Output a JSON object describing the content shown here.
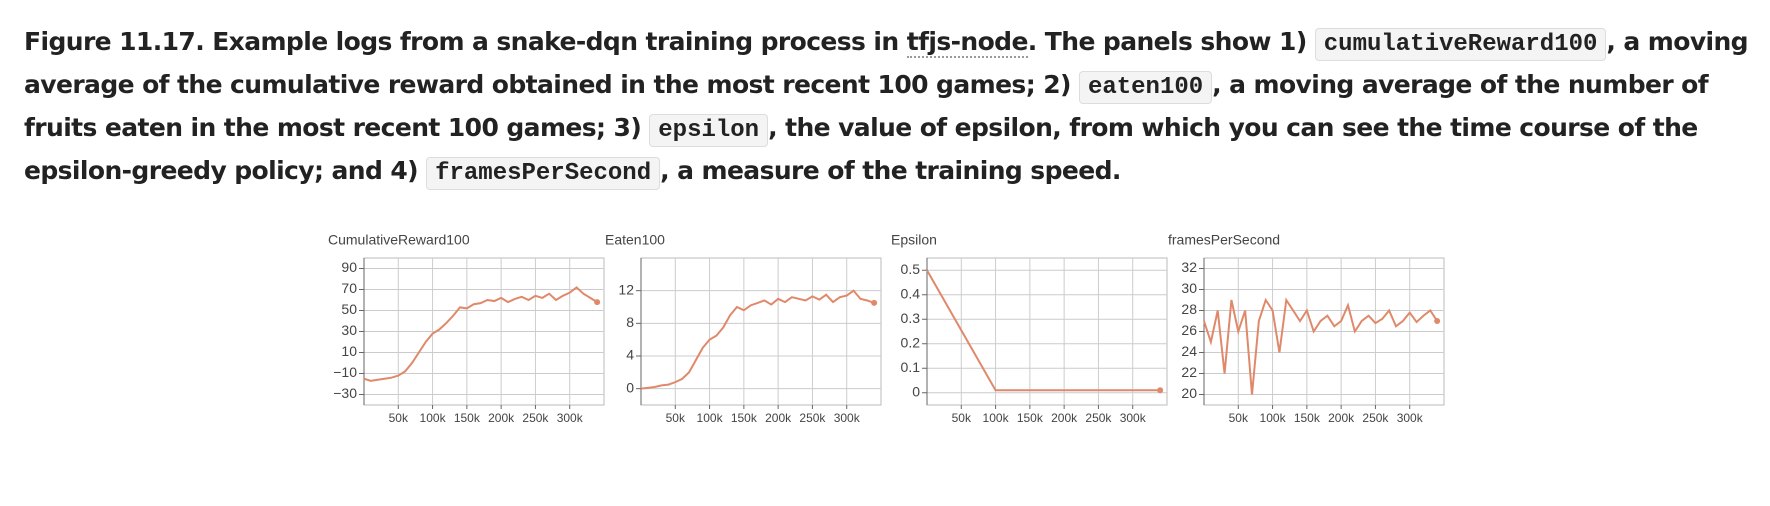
{
  "caption": {
    "segments": [
      {
        "text": "Figure 11.17. Example logs from a snake-dqn training process in ",
        "style": "text"
      },
      {
        "text": "tfjs-node",
        "style": "link"
      },
      {
        "text": ". The panels show 1) ",
        "style": "text"
      },
      {
        "text": "cumulativeReward100",
        "style": "code"
      },
      {
        "text": ", a moving average of the cumulative reward obtained in the most recent 100 games; 2) ",
        "style": "text"
      },
      {
        "text": "eaten100",
        "style": "code"
      },
      {
        "text": ", a moving average of the number of fruits eaten in the most recent 100 games; 3) ",
        "style": "text"
      },
      {
        "text": "epsilon",
        "style": "code"
      },
      {
        "text": ", the value of epsilon, from which you can see the time course of the epsilon-greedy policy; and 4) ",
        "style": "text"
      },
      {
        "text": "framesPerSecond",
        "style": "code"
      },
      {
        "text": ", a measure of the training speed.",
        "style": "text"
      }
    ]
  },
  "chart_data": [
    {
      "type": "line",
      "title": "CumulativeReward100",
      "color": "#e0896a",
      "grid": true,
      "x": [
        0,
        10000,
        20000,
        30000,
        40000,
        50000,
        60000,
        70000,
        80000,
        90000,
        100000,
        110000,
        120000,
        130000,
        140000,
        150000,
        160000,
        170000,
        180000,
        190000,
        200000,
        210000,
        220000,
        230000,
        240000,
        250000,
        260000,
        270000,
        280000,
        290000,
        300000,
        310000,
        320000,
        330000,
        340000
      ],
      "values": [
        -15,
        -17,
        -16,
        -15,
        -14,
        -12,
        -8,
        0,
        10,
        20,
        28,
        32,
        38,
        45,
        53,
        52,
        56,
        57,
        60,
        59,
        62,
        58,
        61,
        63,
        60,
        64,
        62,
        66,
        60,
        64,
        67,
        72,
        66,
        62,
        58
      ],
      "xlim": [
        0,
        350000
      ],
      "ylim": [
        -40,
        100
      ],
      "xticks": [
        {
          "value": 50000,
          "label": "50k"
        },
        {
          "value": 100000,
          "label": "100k"
        },
        {
          "value": 150000,
          "label": "150k"
        },
        {
          "value": 200000,
          "label": "200k"
        },
        {
          "value": 250000,
          "label": "250k"
        },
        {
          "value": 300000,
          "label": "300k"
        }
      ],
      "yticks": [
        90,
        70,
        50,
        30,
        10,
        {
          "value": -10,
          "label": "−10"
        },
        {
          "value": -30,
          "label": "−30"
        }
      ]
    },
    {
      "type": "line",
      "title": "Eaten100",
      "color": "#e0896a",
      "grid": true,
      "x": [
        0,
        10000,
        20000,
        30000,
        40000,
        50000,
        60000,
        70000,
        80000,
        90000,
        100000,
        110000,
        120000,
        130000,
        140000,
        150000,
        160000,
        170000,
        180000,
        190000,
        200000,
        210000,
        220000,
        230000,
        240000,
        250000,
        260000,
        270000,
        280000,
        290000,
        300000,
        310000,
        320000,
        330000,
        340000
      ],
      "values": [
        0,
        0.1,
        0.2,
        0.4,
        0.5,
        0.8,
        1.2,
        2,
        3.5,
        5,
        6,
        6.5,
        7.5,
        9,
        10,
        9.6,
        10.2,
        10.5,
        10.8,
        10.3,
        11,
        10.6,
        11.2,
        11,
        10.8,
        11.3,
        10.9,
        11.5,
        10.6,
        11.2,
        11.4,
        12,
        11,
        10.8,
        10.5
      ],
      "xlim": [
        0,
        350000
      ],
      "ylim": [
        -2,
        16
      ],
      "xticks": [
        {
          "value": 50000,
          "label": "50k"
        },
        {
          "value": 100000,
          "label": "100k"
        },
        {
          "value": 150000,
          "label": "150k"
        },
        {
          "value": 200000,
          "label": "200k"
        },
        {
          "value": 250000,
          "label": "250k"
        },
        {
          "value": 300000,
          "label": "300k"
        }
      ],
      "yticks": [
        12,
        8,
        4,
        0
      ]
    },
    {
      "type": "line",
      "title": "Epsilon",
      "color": "#e0896a",
      "grid": true,
      "x": [
        0,
        100000,
        340000
      ],
      "values": [
        0.5,
        0.01,
        0.01
      ],
      "xlim": [
        0,
        350000
      ],
      "ylim": [
        -0.05,
        0.55
      ],
      "xticks": [
        {
          "value": 50000,
          "label": "50k"
        },
        {
          "value": 100000,
          "label": "100k"
        },
        {
          "value": 150000,
          "label": "150k"
        },
        {
          "value": 200000,
          "label": "200k"
        },
        {
          "value": 250000,
          "label": "250k"
        },
        {
          "value": 300000,
          "label": "300k"
        }
      ],
      "yticks": [
        0.5,
        0.4,
        0.3,
        0.2,
        0.1,
        0
      ]
    },
    {
      "type": "line",
      "title": "framesPerSecond",
      "color": "#e0896a",
      "grid": true,
      "x": [
        0,
        10000,
        20000,
        30000,
        40000,
        50000,
        60000,
        70000,
        80000,
        90000,
        100000,
        110000,
        120000,
        130000,
        140000,
        150000,
        160000,
        170000,
        180000,
        190000,
        200000,
        210000,
        220000,
        230000,
        240000,
        250000,
        260000,
        270000,
        280000,
        290000,
        300000,
        310000,
        320000,
        330000,
        340000
      ],
      "values": [
        27,
        25,
        28,
        22,
        29,
        26,
        28,
        20,
        27,
        29,
        28,
        24,
        29,
        28,
        27,
        28,
        26,
        27,
        27.5,
        26.5,
        27,
        28.5,
        26,
        27,
        27.5,
        26.8,
        27.2,
        28,
        26.5,
        27,
        27.8,
        26.9,
        27.5,
        28,
        27
      ],
      "xlim": [
        0,
        350000
      ],
      "ylim": [
        19,
        33
      ],
      "xticks": [
        {
          "value": 50000,
          "label": "50k"
        },
        {
          "value": 100000,
          "label": "100k"
        },
        {
          "value": 150000,
          "label": "150k"
        },
        {
          "value": 200000,
          "label": "200k"
        },
        {
          "value": 250000,
          "label": "250k"
        },
        {
          "value": 300000,
          "label": "300k"
        }
      ],
      "yticks": [
        32,
        30,
        28,
        26,
        24,
        22,
        20
      ]
    }
  ]
}
